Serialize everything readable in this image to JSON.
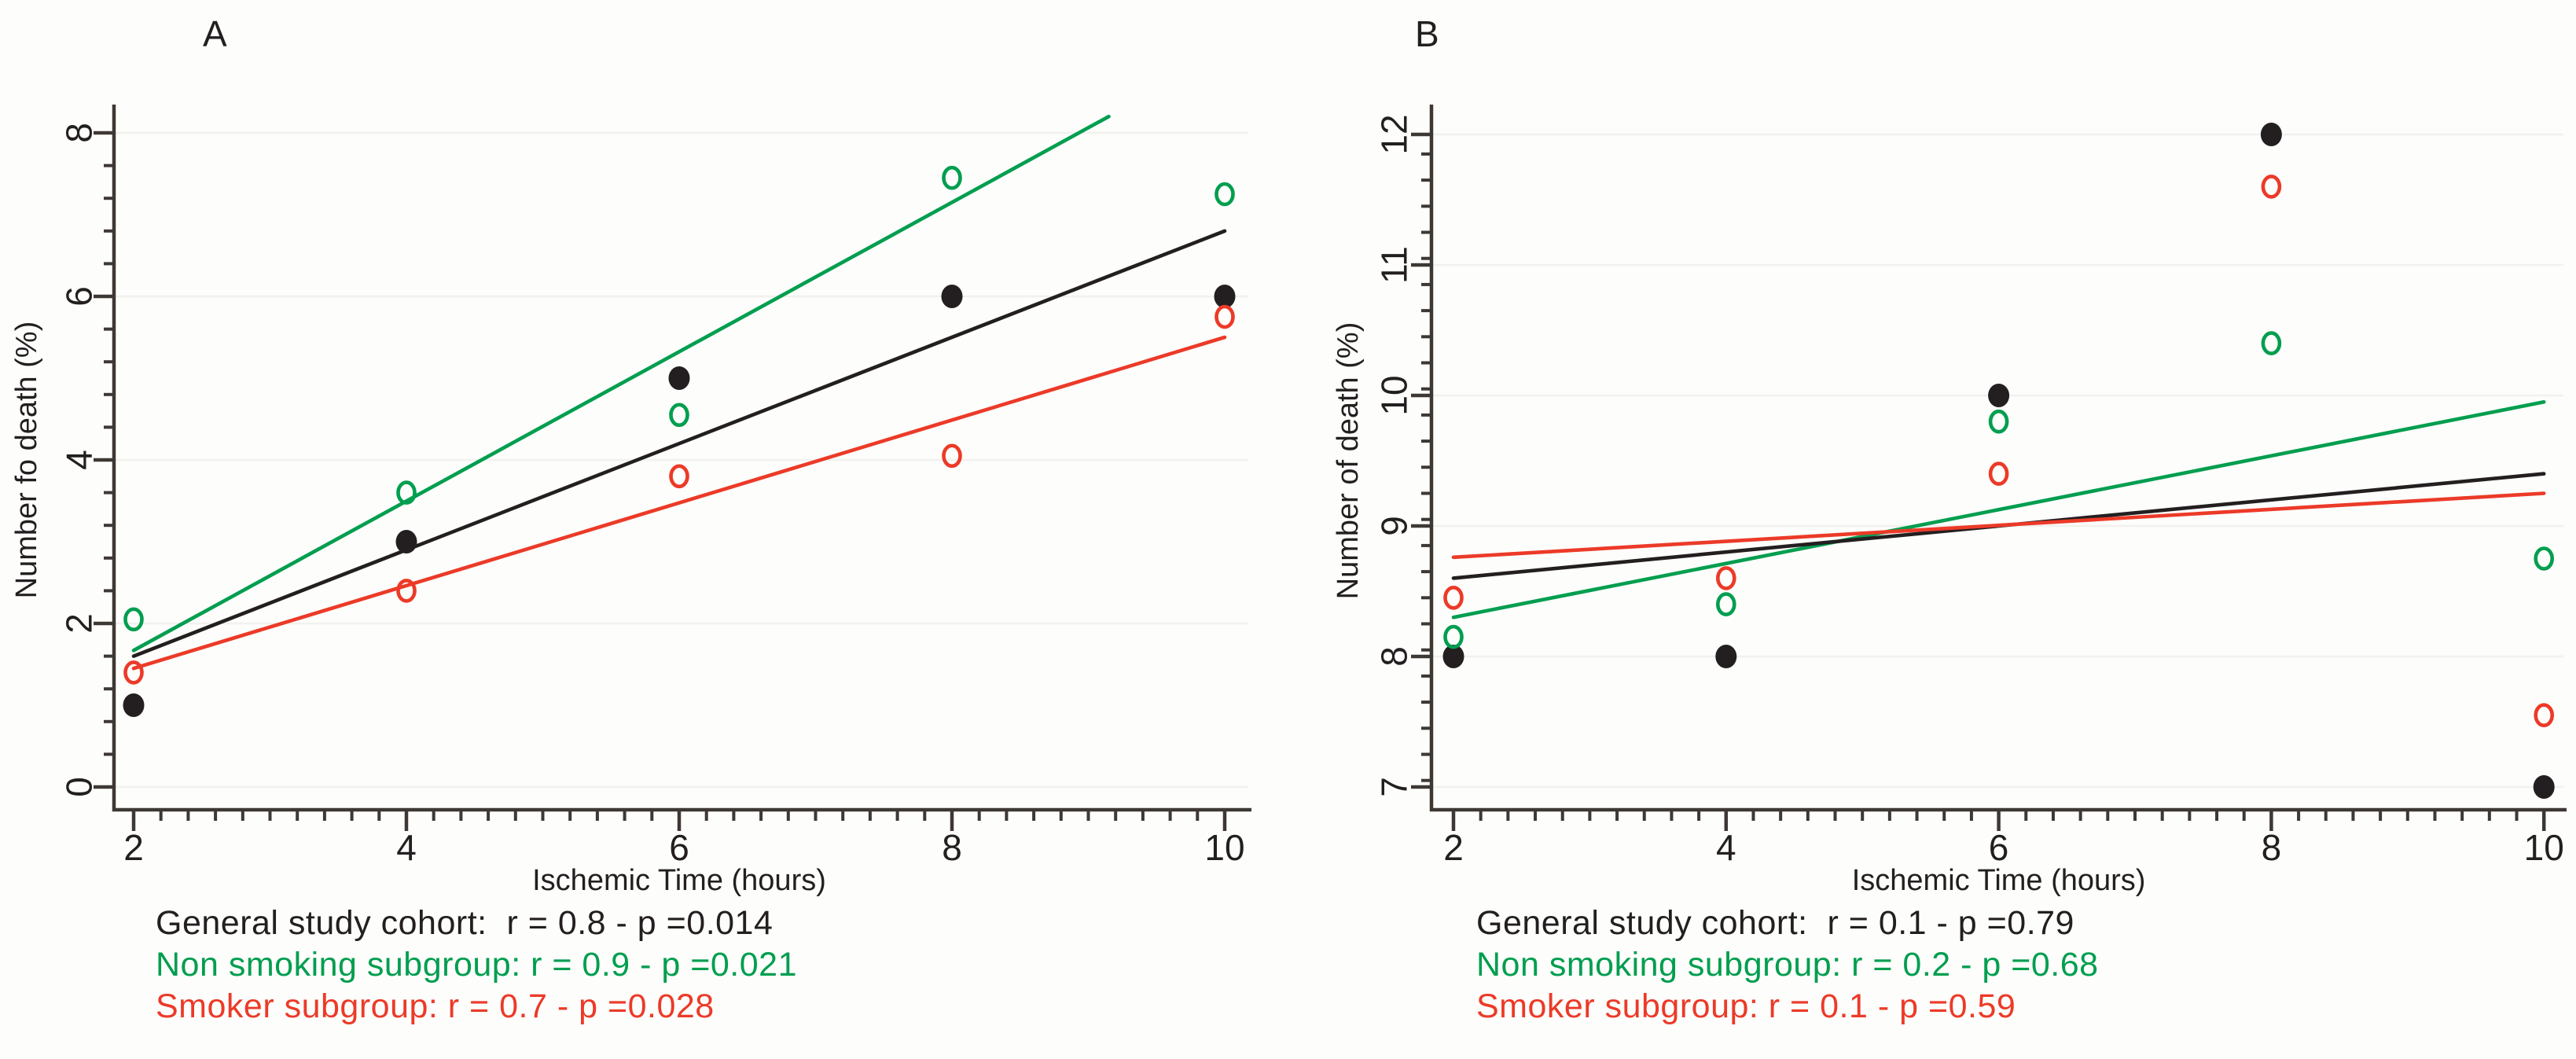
{
  "figure": {
    "background": "#fdfdfb"
  },
  "colors": {
    "general": "#231f20",
    "non_smoking": "#009e4f",
    "smoker": "#ec3a28",
    "axis": "#3e3835",
    "grid": "#f1f1ee"
  },
  "chart_data": [
    {
      "type": "scatter",
      "panel_label": "A",
      "axes": {
        "x": {
          "label": "Ischemic Time (hours)",
          "min": 2,
          "max": 10,
          "major_ticks": [
            2,
            4,
            6,
            8,
            10
          ],
          "minor_step": 0.2
        },
        "y": {
          "label": "Number fo death (%)",
          "min": 0,
          "max": 8.3,
          "major_ticks": [
            0,
            2,
            4,
            6,
            8
          ],
          "minor_step": 0.4
        }
      },
      "grid": "horizontal-majors",
      "series": [
        {
          "name": "General study cohort",
          "marker": "filled-circle",
          "color_key": "general",
          "points": [
            [
              2,
              1.0
            ],
            [
              4,
              3.0
            ],
            [
              6,
              5.0
            ],
            [
              8,
              6.0
            ],
            [
              10,
              6.0
            ]
          ]
        },
        {
          "name": "Non smoking subgroup",
          "marker": "open-circle",
          "color_key": "non_smoking",
          "points": [
            [
              2,
              2.05
            ],
            [
              4,
              3.6
            ],
            [
              6,
              4.55
            ],
            [
              8,
              7.45
            ],
            [
              10,
              7.25
            ]
          ]
        },
        {
          "name": "Smoker subgroup",
          "marker": "open-circle",
          "color_key": "smoker",
          "points": [
            [
              2,
              1.4
            ],
            [
              4,
              2.4
            ],
            [
              6,
              3.8
            ],
            [
              8,
              4.05
            ],
            [
              10,
              5.75
            ]
          ]
        }
      ],
      "fit_lines": [
        {
          "series": "Non smoking subgroup",
          "color_key": "non_smoking",
          "from": [
            2,
            1.67
          ],
          "to": [
            9.15,
            8.2
          ]
        },
        {
          "series": "General study cohort",
          "color_key": "general",
          "from": [
            2,
            1.6
          ],
          "to": [
            10,
            6.8
          ]
        },
        {
          "series": "Smoker subgroup",
          "color_key": "smoker",
          "from": [
            2,
            1.45
          ],
          "to": [
            10,
            5.5
          ]
        }
      ],
      "legend": [
        {
          "text": "General study cohort:  r = 0.8 - p =0.014",
          "color_key": "general"
        },
        {
          "text": "Non smoking subgroup: r = 0.9 - p =0.021",
          "color_key": "non_smoking"
        },
        {
          "text": "Smoker subgroup: r = 0.7 - p =0.028",
          "color_key": "smoker"
        }
      ],
      "stats": [
        {
          "group": "General study cohort",
          "r": "0.8",
          "p": "0.014"
        },
        {
          "group": "Non smoking subgroup",
          "r": "0.9",
          "p": "0.021"
        },
        {
          "group": "Smoker subgroup",
          "r": "0.7",
          "p": "0.028"
        }
      ]
    },
    {
      "type": "scatter",
      "panel_label": "B",
      "axes": {
        "x": {
          "label": "Ischemic Time (hours)",
          "min": 2,
          "max": 10,
          "major_ticks": [
            2,
            4,
            6,
            8,
            10
          ],
          "minor_step": 0.2
        },
        "y": {
          "label": "Number of death (%)",
          "min": 6.85,
          "max": 12.2,
          "major_ticks": [
            7,
            8,
            9,
            10,
            11,
            12
          ],
          "minor_step": 0.2
        }
      },
      "grid": "horizontal-majors",
      "series": [
        {
          "name": "General study cohort",
          "marker": "filled-circle",
          "color_key": "general",
          "points": [
            [
              2,
              8.0
            ],
            [
              4,
              8.0
            ],
            [
              6,
              10.0
            ],
            [
              8,
              12.0
            ],
            [
              10,
              7.0
            ]
          ]
        },
        {
          "name": "Non smoking subgroup",
          "marker": "open-circle",
          "color_key": "non_smoking",
          "points": [
            [
              2,
              8.15
            ],
            [
              4,
              8.4
            ],
            [
              6,
              9.8
            ],
            [
              8,
              10.4
            ],
            [
              10,
              8.75
            ]
          ]
        },
        {
          "name": "Smoker subgroup",
          "marker": "open-circle",
          "color_key": "smoker",
          "points": [
            [
              2,
              8.45
            ],
            [
              4,
              8.6
            ],
            [
              6,
              9.4
            ],
            [
              8,
              11.6
            ],
            [
              10,
              7.55
            ]
          ]
        }
      ],
      "fit_lines": [
        {
          "series": "Non smoking subgroup",
          "color_key": "non_smoking",
          "from": [
            2,
            8.3
          ],
          "to": [
            10,
            9.95
          ]
        },
        {
          "series": "General study cohort",
          "color_key": "general",
          "from": [
            2,
            8.6
          ],
          "to": [
            10,
            9.4
          ]
        },
        {
          "series": "Smoker subgroup",
          "color_key": "smoker",
          "from": [
            2,
            8.76
          ],
          "to": [
            10,
            9.25
          ]
        }
      ],
      "legend": [
        {
          "text": "General study cohort:  r = 0.1 - p =0.79",
          "color_key": "general"
        },
        {
          "text": "Non smoking subgroup: r = 0.2 - p =0.68",
          "color_key": "non_smoking"
        },
        {
          "text": "Smoker subgroup: r = 0.1 - p =0.59",
          "color_key": "smoker"
        }
      ],
      "stats": [
        {
          "group": "General study cohort",
          "r": "0.1",
          "p": "0.79"
        },
        {
          "group": "Non smoking subgroup",
          "r": "0.2",
          "p": "0.68"
        },
        {
          "group": "Smoker subgroup",
          "r": "0.1",
          "p": "0.59"
        }
      ]
    }
  ]
}
